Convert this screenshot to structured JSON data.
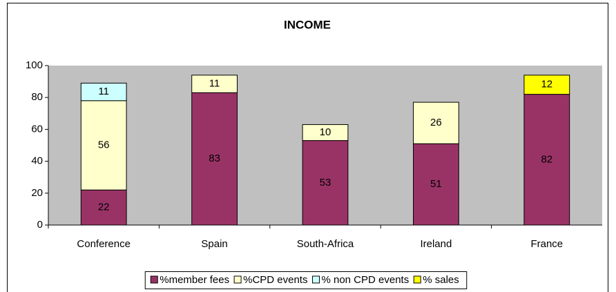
{
  "chart_data": {
    "type": "bar",
    "stacked": true,
    "title": "INCOME",
    "categories": [
      "Conference",
      "Spain",
      "South-Africa",
      "Ireland",
      "France"
    ],
    "series": [
      {
        "name": "%member fees",
        "color": "#993366",
        "values": [
          22,
          83,
          53,
          51,
          82
        ]
      },
      {
        "name": "%CPD events",
        "color": "#ffffcc",
        "values": [
          56,
          11,
          10,
          26,
          null
        ]
      },
      {
        "name": "% non CPD events",
        "color": "#ccffff",
        "values": [
          11,
          null,
          null,
          null,
          null
        ]
      },
      {
        "name": "% sales",
        "color": "#ffff00",
        "values": [
          null,
          null,
          null,
          null,
          12
        ]
      }
    ],
    "ylim": [
      0,
      100
    ],
    "yticks": [
      0,
      20,
      40,
      60,
      80,
      100
    ],
    "grid": false,
    "legend": "bottom"
  }
}
